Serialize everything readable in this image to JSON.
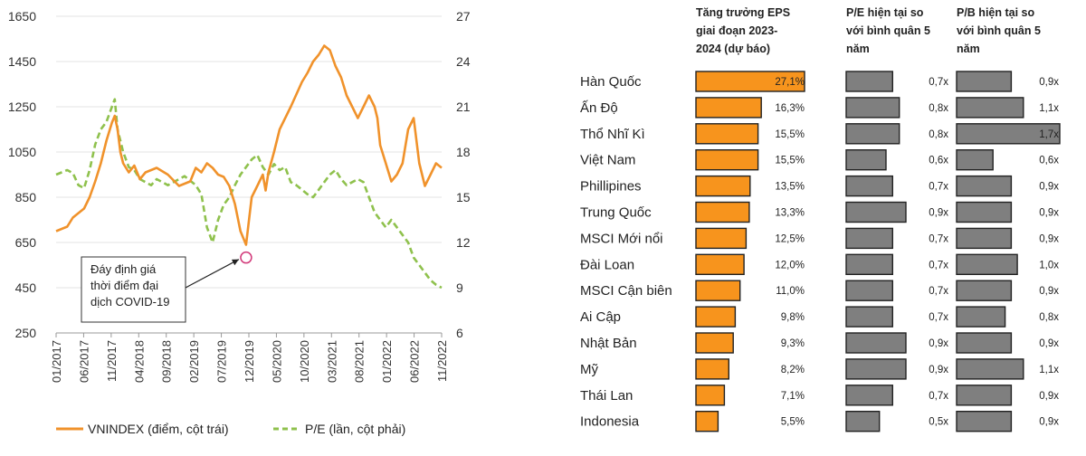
{
  "chart_data": [
    {
      "type": "line",
      "x_tick_labels": [
        "01/2017",
        "06/2017",
        "11/2017",
        "04/2018",
        "09/2018",
        "02/2019",
        "07/2019",
        "12/2019",
        "05/2020",
        "10/2020",
        "03/2021",
        "08/2021",
        "01/2022",
        "06/2022",
        "11/2022"
      ],
      "y_left": {
        "ylim": [
          250,
          1650
        ],
        "ticks": [
          "250",
          "450",
          "650",
          "850",
          "1050",
          "1250",
          "1450",
          "1650"
        ]
      },
      "y_right": {
        "ylim": [
          6,
          27
        ],
        "ticks": [
          "6",
          "9",
          "12",
          "15",
          "18",
          "21",
          "24",
          "27"
        ]
      },
      "series": [
        {
          "name": "VNINDEX (điểm, cột trái)",
          "axis": "left",
          "color": "#f0922b",
          "x": [
            0,
            2,
            3,
            5,
            6,
            7,
            8,
            9,
            10,
            10.5,
            11,
            11.5,
            12,
            13,
            14,
            15,
            16,
            18,
            20,
            22,
            24,
            25,
            26,
            27,
            28,
            29,
            30,
            31,
            32,
            33,
            34,
            35,
            36,
            37,
            37.5,
            38,
            39,
            40,
            42,
            44,
            45,
            46,
            47,
            48,
            49,
            50,
            51,
            52,
            53,
            54,
            55,
            56,
            57,
            57.5,
            58,
            59,
            60,
            61,
            62,
            63,
            64,
            65,
            66,
            67,
            68,
            69
          ],
          "y": [
            700,
            720,
            760,
            800,
            850,
            920,
            1000,
            1100,
            1180,
            1210,
            1150,
            1050,
            1000,
            960,
            990,
            930,
            960,
            980,
            950,
            900,
            920,
            980,
            960,
            1000,
            980,
            950,
            940,
            900,
            820,
            700,
            640,
            850,
            900,
            950,
            880,
            960,
            1050,
            1150,
            1250,
            1360,
            1400,
            1450,
            1480,
            1520,
            1500,
            1430,
            1380,
            1300,
            1250,
            1200,
            1250,
            1300,
            1250,
            1200,
            1080,
            1000,
            920,
            950,
            1000,
            1150,
            1200,
            1000,
            900,
            950,
            1000,
            980
          ]
        },
        {
          "name": "P/E (lần, cột phải)",
          "axis": "right",
          "color": "#8fc14d",
          "dashed": true,
          "x": [
            0,
            2,
            3,
            4,
            5,
            6,
            7,
            8,
            9,
            10,
            10.5,
            11,
            12,
            13,
            14,
            15,
            16,
            17,
            18,
            19,
            20,
            21,
            22,
            23,
            24,
            25,
            26,
            27,
            28,
            29,
            30,
            31,
            32,
            33,
            34,
            35,
            36,
            37,
            38,
            39,
            40,
            41,
            42,
            43,
            44,
            45,
            46,
            47,
            48,
            49,
            50,
            51,
            52,
            53,
            54,
            55,
            56,
            57,
            58,
            59,
            60,
            61,
            62,
            63,
            64,
            65,
            66,
            67,
            68,
            69
          ],
          "y": [
            16.5,
            16.8,
            16.6,
            15.8,
            15.6,
            16.8,
            18.5,
            19.5,
            20.0,
            21.0,
            21.5,
            19.5,
            18.0,
            17.0,
            16.8,
            16.2,
            16.0,
            15.8,
            16.2,
            16.0,
            15.8,
            16.0,
            16.2,
            16.4,
            16.1,
            15.8,
            15.2,
            13.0,
            12.0,
            13.5,
            14.5,
            15.0,
            15.8,
            16.5,
            17.0,
            17.5,
            17.8,
            17.0,
            16.5,
            17.2,
            16.8,
            17.0,
            16.0,
            15.8,
            15.5,
            15.2,
            15.0,
            15.5,
            16.0,
            16.5,
            16.8,
            16.2,
            15.8,
            16.0,
            16.2,
            16.0,
            15.0,
            14.0,
            13.5,
            13.0,
            13.5,
            13.0,
            12.5,
            12.0,
            11.0,
            10.5,
            10.0,
            9.5,
            9.2,
            9.0
          ]
        }
      ],
      "annotation": {
        "text_lines": [
          "Đáy định giá",
          "thời điểm đại",
          "dịch COVID-19"
        ],
        "target_x": 34,
        "target_y_right": 11
      }
    },
    {
      "type": "table",
      "columns": [
        {
          "key": "eps",
          "header_lines": [
            "Tăng trưởng EPS",
            "giai đoạn 2023-",
            "2024 (dự báo)"
          ]
        },
        {
          "key": "pe",
          "header_lines": [
            "P/E hiện tại so",
            "với bình quân 5",
            "năm"
          ]
        },
        {
          "key": "pb",
          "header_lines": [
            "P/B hiện tại so",
            "với bình quân 5",
            "năm"
          ]
        }
      ],
      "rows": [
        {
          "market": "Hàn Quốc",
          "eps": 27.1,
          "eps_label": "27,1%",
          "pe": 0.7,
          "pe_label": "0,7x",
          "pb": 0.9,
          "pb_label": "0,9x"
        },
        {
          "market": "Ấn Độ",
          "eps": 16.3,
          "eps_label": "16,3%",
          "pe": 0.8,
          "pe_label": "0,8x",
          "pb": 1.1,
          "pb_label": "1,1x"
        },
        {
          "market": "Thổ Nhĩ Kì",
          "eps": 15.5,
          "eps_label": "15,5%",
          "pe": 0.8,
          "pe_label": "0,8x",
          "pb": 1.7,
          "pb_label": "1,7x"
        },
        {
          "market": "Việt Nam",
          "eps": 15.5,
          "eps_label": "15,5%",
          "pe": 0.6,
          "pe_label": "0,6x",
          "pb": 0.6,
          "pb_label": "0,6x"
        },
        {
          "market": "Phillipines",
          "eps": 13.5,
          "eps_label": "13,5%",
          "pe": 0.7,
          "pe_label": "0,7x",
          "pb": 0.9,
          "pb_label": "0,9x"
        },
        {
          "market": "Trung Quốc",
          "eps": 13.3,
          "eps_label": "13,3%",
          "pe": 0.9,
          "pe_label": "0,9x",
          "pb": 0.9,
          "pb_label": "0,9x"
        },
        {
          "market": "MSCI Mới nổi",
          "eps": 12.5,
          "eps_label": "12,5%",
          "pe": 0.7,
          "pe_label": "0,7x",
          "pb": 0.9,
          "pb_label": "0,9x"
        },
        {
          "market": "Đài Loan",
          "eps": 12.0,
          "eps_label": "12,0%",
          "pe": 0.7,
          "pe_label": "0,7x",
          "pb": 1.0,
          "pb_label": "1,0x"
        },
        {
          "market": "MSCI Cận biên",
          "eps": 11.0,
          "eps_label": "11,0%",
          "pe": 0.7,
          "pe_label": "0,7x",
          "pb": 0.9,
          "pb_label": "0,9x"
        },
        {
          "market": "Ai Cập",
          "eps": 9.8,
          "eps_label": "9,8%",
          "pe": 0.7,
          "pe_label": "0,7x",
          "pb": 0.8,
          "pb_label": "0,8x"
        },
        {
          "market": "Nhật Bản",
          "eps": 9.3,
          "eps_label": "9,3%",
          "pe": 0.9,
          "pe_label": "0,9x",
          "pb": 0.9,
          "pb_label": "0,9x"
        },
        {
          "market": "Mỹ",
          "eps": 8.2,
          "eps_label": "8,2%",
          "pe": 0.9,
          "pe_label": "0,9x",
          "pb": 1.1,
          "pb_label": "1,1x"
        },
        {
          "market": "Thái Lan",
          "eps": 7.1,
          "eps_label": "7,1%",
          "pe": 0.7,
          "pe_label": "0,7x",
          "pb": 0.9,
          "pb_label": "0,9x"
        },
        {
          "market": "Indonesia",
          "eps": 5.5,
          "eps_label": "5,5%",
          "pe": 0.5,
          "pe_label": "0,5x",
          "pb": 0.9,
          "pb_label": "0,9x"
        }
      ],
      "colors": {
        "eps_bar": "#f7941d",
        "ratio_bar": "#7f7f7f"
      }
    }
  ]
}
